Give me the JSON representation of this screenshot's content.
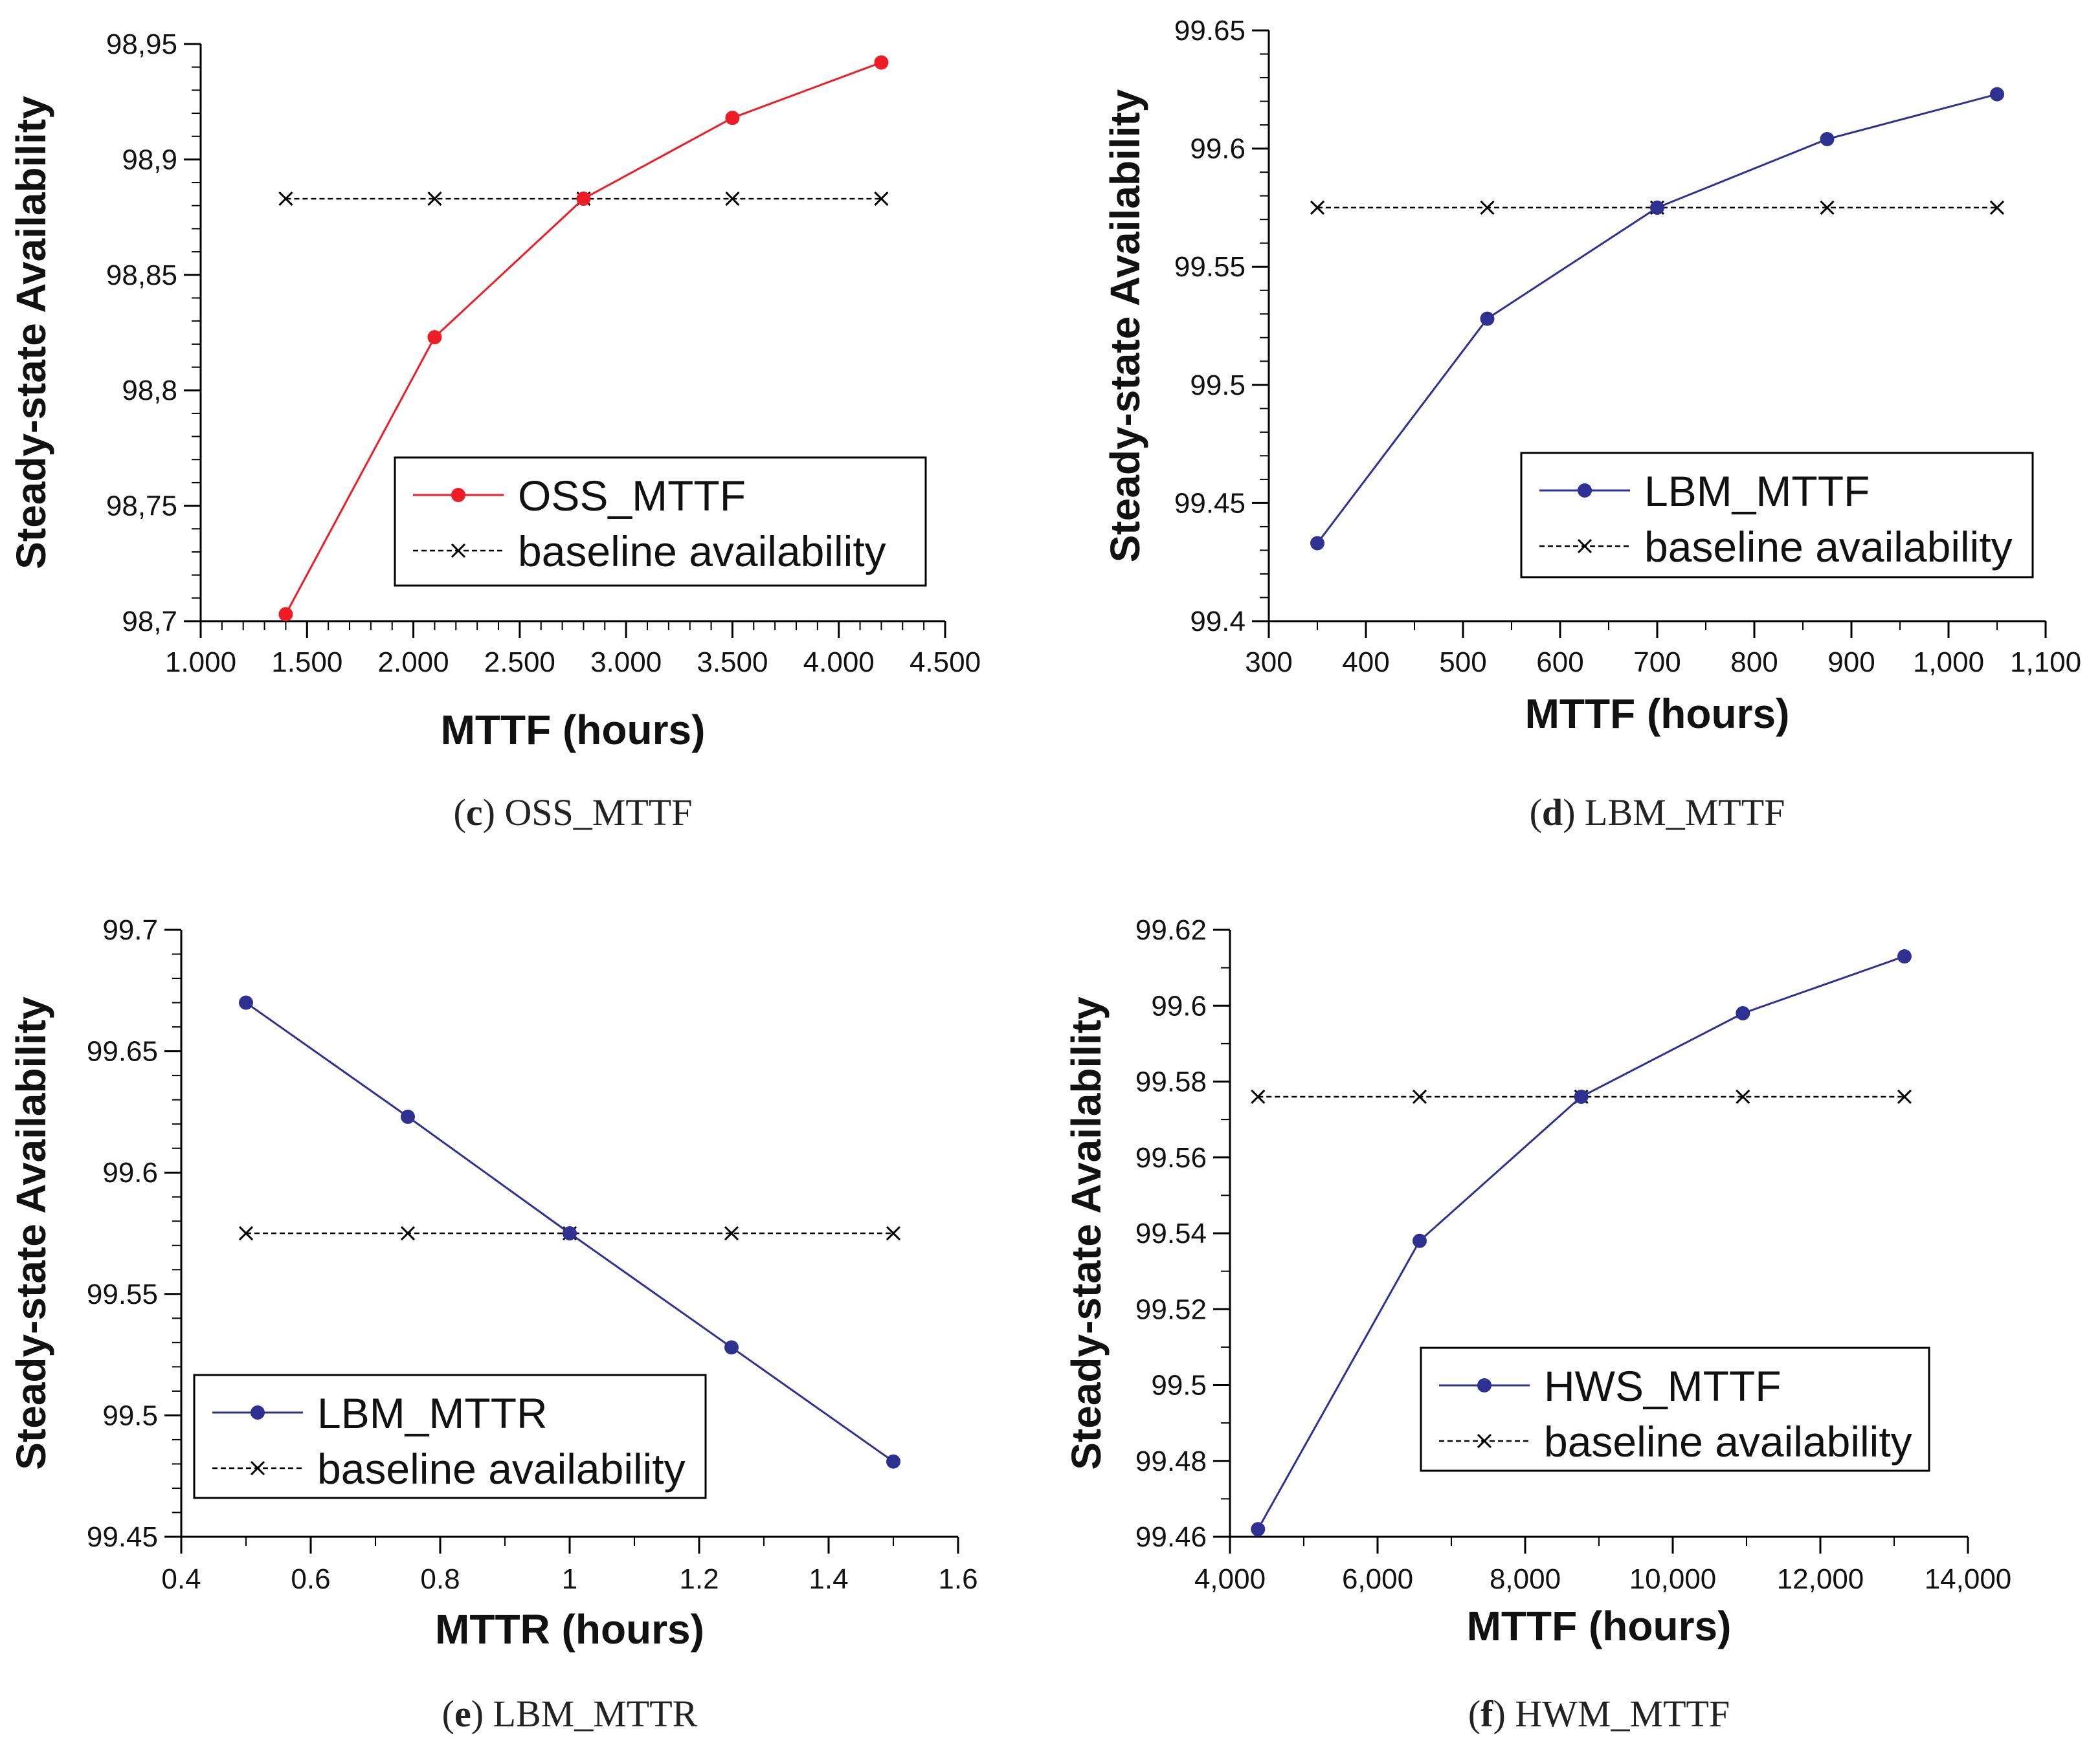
{
  "chart_data": [
    {
      "id": "c",
      "type": "line",
      "caption": {
        "letter": "c",
        "text": "OSS_MTTF"
      },
      "xlabel": "MTTF (hours)",
      "ylabel": "Steady-state Availability",
      "xlim": [
        1000,
        4500
      ],
      "ylim": [
        98.7,
        98.95
      ],
      "xticks": [
        1000,
        1500,
        2000,
        2500,
        3000,
        3500,
        4000,
        4500
      ],
      "xtick_labels": [
        "1.000",
        "1.500",
        "2.000",
        "2.500",
        "3.000",
        "3.500",
        "4.000",
        "4.500"
      ],
      "yticks": [
        98.7,
        98.75,
        98.8,
        98.85,
        98.9,
        98.95
      ],
      "ytick_labels": [
        "98,7",
        "98,75",
        "98,8",
        "98,85",
        "98,9",
        "98,95"
      ],
      "minor_x": 4,
      "minor_y": 4,
      "x": [
        1400,
        2100,
        2800,
        3500,
        4200
      ],
      "series": [
        {
          "name": "OSS_MTTF",
          "style": "solid-dot",
          "color": "#ee1c25",
          "values": [
            98.703,
            98.823,
            98.883,
            98.918,
            98.942
          ]
        },
        {
          "name": "baseline availability",
          "style": "dashed-cross",
          "color": "#000000",
          "values": [
            98.883,
            98.883,
            98.883,
            98.883,
            98.883
          ]
        }
      ],
      "legend": "center-right"
    },
    {
      "id": "d",
      "type": "line",
      "caption": {
        "letter": "d",
        "text": "LBM_MTTF"
      },
      "xlabel": "MTTF (hours)",
      "ylabel": "Steady-state Availability",
      "xlim": [
        300,
        1100
      ],
      "ylim": [
        99.4,
        99.65
      ],
      "xticks": [
        300,
        400,
        500,
        600,
        700,
        800,
        900,
        1000,
        1100
      ],
      "xtick_labels": [
        "300",
        "400",
        "500",
        "600",
        "700",
        "800",
        "900",
        "1,000",
        "1,100"
      ],
      "yticks": [
        99.4,
        99.45,
        99.5,
        99.55,
        99.6,
        99.65
      ],
      "ytick_labels": [
        "99.4",
        "99.45",
        "99.5",
        "99.55",
        "99.6",
        "99.65"
      ],
      "minor_x": 1,
      "minor_y": 4,
      "x": [
        350,
        525,
        700,
        875,
        1050
      ],
      "series": [
        {
          "name": "LBM_MTTF",
          "style": "solid-dot",
          "color": "#2e3192",
          "values": [
            99.433,
            99.528,
            99.575,
            99.604,
            99.623
          ]
        },
        {
          "name": "baseline availability",
          "style": "dashed-cross",
          "color": "#000000",
          "values": [
            99.575,
            99.575,
            99.575,
            99.575,
            99.575
          ]
        }
      ],
      "legend": "center-right"
    },
    {
      "id": "e",
      "type": "line",
      "caption": {
        "letter": "e",
        "text": "LBM_MTTR"
      },
      "xlabel": "MTTR (hours)",
      "ylabel": "Steady-state Availability",
      "xlim": [
        0.4,
        1.6
      ],
      "ylim": [
        99.45,
        99.7
      ],
      "xticks": [
        0.4,
        0.6,
        0.8,
        1.0,
        1.2,
        1.4,
        1.6
      ],
      "xtick_labels": [
        "0.4",
        "0.6",
        "0.8",
        "1",
        "1.2",
        "1.4",
        "1.6"
      ],
      "yticks": [
        99.45,
        99.5,
        99.55,
        99.6,
        99.65,
        99.7
      ],
      "ytick_labels": [
        "99.45",
        "99.5",
        "99.55",
        "99.6",
        "99.65",
        "99.7"
      ],
      "minor_x": 1,
      "minor_y": 4,
      "x": [
        0.5,
        0.75,
        1.0,
        1.25,
        1.5
      ],
      "series": [
        {
          "name": "LBM_MTTR",
          "style": "solid-dot",
          "color": "#2e3192",
          "values": [
            99.67,
            99.623,
            99.575,
            99.528,
            99.481
          ]
        },
        {
          "name": "baseline availability",
          "style": "dashed-cross",
          "color": "#000000",
          "values": [
            99.575,
            99.575,
            99.575,
            99.575,
            99.575
          ]
        }
      ],
      "legend": "bottom-left"
    },
    {
      "id": "f",
      "type": "line",
      "caption": {
        "letter": "f",
        "text": "HWM_MTTF"
      },
      "xlabel": "MTTF (hours)",
      "ylabel": "Steady-state Availability",
      "xlim": [
        4000,
        14000
      ],
      "ylim": [
        99.46,
        99.62
      ],
      "xticks": [
        4000,
        6000,
        8000,
        10000,
        12000,
        14000
      ],
      "xtick_labels": [
        "4,000",
        "6,000",
        "8,000",
        "10,000",
        "12,000",
        "14,000"
      ],
      "yticks": [
        99.46,
        99.48,
        99.5,
        99.52,
        99.54,
        99.56,
        99.58,
        99.6,
        99.62
      ],
      "ytick_labels": [
        "99.46",
        "99.48",
        "99.5",
        "99.52",
        "99.54",
        "99.56",
        "99.58",
        "99.6",
        "99.62"
      ],
      "minor_x": 1,
      "minor_y": 1,
      "x": [
        4380,
        6570,
        8760,
        10950,
        13140
      ],
      "series": [
        {
          "name": "HWS_MTTF",
          "style": "solid-dot",
          "color": "#2e3192",
          "values": [
            99.462,
            99.538,
            99.576,
            99.598,
            99.613
          ]
        },
        {
          "name": "baseline availability",
          "style": "dashed-cross",
          "color": "#000000",
          "values": [
            99.576,
            99.576,
            99.576,
            99.576,
            99.576
          ]
        }
      ],
      "legend": "center-right"
    }
  ]
}
